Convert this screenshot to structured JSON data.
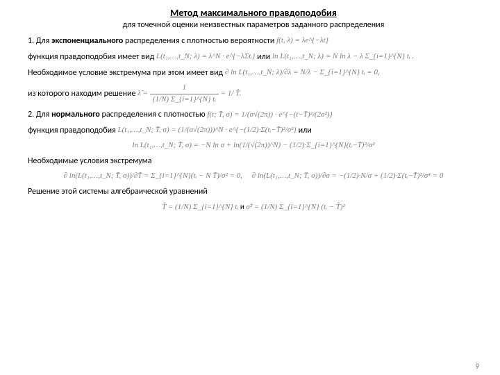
{
  "title": "Метод максимального правдоподобия",
  "subtitle": "для точечной оценки неизвестных параметров заданного распределения",
  "item1_pre": "1.   Для ",
  "item1_bold": "экспоненциального",
  "item1_post": " распределения с плотностью вероятности ",
  "f1": "f(t, λ) = λe^{−λt}",
  "line2_a": "функция правдоподобия имеет вид ",
  "f2": "L(t₁,…,t_N; λ) = λ^N · e^{−λΣtᵢ}",
  "line2_b": "  или  ",
  "f3": "ln L(t₁,…,t_N; λ) = N ln λ − λ Σ_{i=1}^{N} tᵢ",
  "line3": "Необходимое условие экстремума при этом имеет вид ",
  "f4": "∂ ln L(t₁,…,t_N; λ)/∂λ = N/λ − Σ_{i=1}^{N} tᵢ = 0,",
  "line4": "из которого находим решение ",
  "f5_top": "1",
  "f5_bp": "(1/N) Σ_{i=1}^{N} tᵢ",
  "f5_rhs": " = 1/ T̂.",
  "item2_pre": "2.  Для ",
  "item2_bold": "нормального",
  "item2_post": " распределения с плотностью  ",
  "f6": "f(t; T̄, σ) = 1/(σ√(2π)) · e^{−(t−T̄)²/(2σ²)}",
  "line6_a": "функция правдоподобия  ",
  "f7": "L(t₁,…,t_N; T̄, σ) = (1/(σ√(2π)))^N · e^{−(1/2)·Σ(tᵢ−T̄)²/σ²}",
  "line6_b": "   или",
  "f8": "ln L(t₁,…,t_N; T̄, σ) = −N ln σ + ln(1/(√(2π))^N) − (1/2)·Σ_{i=1}^{N}(tᵢ−T̄)²/σ²",
  "line8": "Необходимые условия экстремума",
  "f9a": "∂ ln(L(t₁,…,t_N; T̄, σ))/∂T̄ = Σ_{i=1}^{N}(tᵢ − N T̄)/σ² = 0,",
  "f9b": "∂ ln(L(t₁,…,t_N; T̄, σ))/∂σ = −(1/2)·N/σ + (1/2)·Σ(tᵢ−T̄)²/σ⁴ = 0",
  "line10": "Решение этой системы алгебраической уравнений",
  "f10a": "T̂ = (1/N) Σ_{i=1}^{N} tᵢ",
  "f10_and": "   и   ",
  "f10b": "σ̂² = (1/N) Σ_{i=1}^{N} (tᵢ − T̂)²",
  "pagenum": "9",
  "lambda_hat": "λ̂ = "
}
